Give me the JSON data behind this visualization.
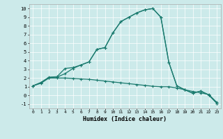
{
  "xlabel": "Humidex (Indice chaleur)",
  "bg_color": "#cceaea",
  "line_color": "#1a7a6e",
  "grid_color": "#ffffff",
  "xlim": [
    -0.5,
    23.5
  ],
  "ylim": [
    -1.5,
    10.5
  ],
  "yticks": [
    -1,
    0,
    1,
    2,
    3,
    4,
    5,
    6,
    7,
    8,
    9,
    10
  ],
  "xticks": [
    0,
    1,
    2,
    3,
    4,
    5,
    6,
    7,
    8,
    9,
    10,
    11,
    12,
    13,
    14,
    15,
    16,
    17,
    18,
    19,
    20,
    21,
    22,
    23
  ],
  "line1_x": [
    0,
    1,
    2,
    3,
    4,
    5,
    6,
    7,
    8,
    9,
    10,
    11,
    12,
    13,
    14,
    15,
    16,
    17,
    18,
    19,
    20,
    21,
    22,
    23
  ],
  "line1_y": [
    1.1,
    1.4,
    2.0,
    2.0,
    2.0,
    1.95,
    1.9,
    1.85,
    1.75,
    1.65,
    1.55,
    1.45,
    1.35,
    1.25,
    1.15,
    1.05,
    1.0,
    1.0,
    0.85,
    0.65,
    0.45,
    0.3,
    0.1,
    -0.8
  ],
  "line2_x": [
    0,
    1,
    2,
    3,
    4,
    5,
    6,
    7,
    8,
    9,
    10,
    11,
    12,
    13,
    14,
    15,
    16,
    17,
    18,
    19,
    20,
    21,
    22,
    23
  ],
  "line2_y": [
    1.1,
    1.5,
    2.1,
    2.15,
    3.1,
    3.2,
    3.5,
    3.85,
    5.3,
    5.5,
    7.2,
    8.5,
    9.0,
    9.5,
    9.85,
    10.0,
    9.0,
    3.8,
    1.1,
    0.65,
    0.25,
    0.5,
    0.05,
    -0.9
  ],
  "line3_x": [
    0,
    1,
    2,
    3,
    4,
    5,
    6,
    7,
    8,
    9,
    10,
    11,
    12,
    13,
    14,
    15,
    16,
    17,
    18,
    19,
    20,
    21,
    22,
    23
  ],
  "line3_y": [
    1.1,
    1.45,
    2.05,
    2.1,
    2.5,
    3.1,
    3.5,
    3.85,
    5.3,
    5.5,
    7.2,
    8.5,
    9.0,
    9.5,
    9.85,
    10.0,
    9.0,
    3.8,
    1.1,
    0.65,
    0.25,
    0.5,
    0.05,
    -0.9
  ]
}
